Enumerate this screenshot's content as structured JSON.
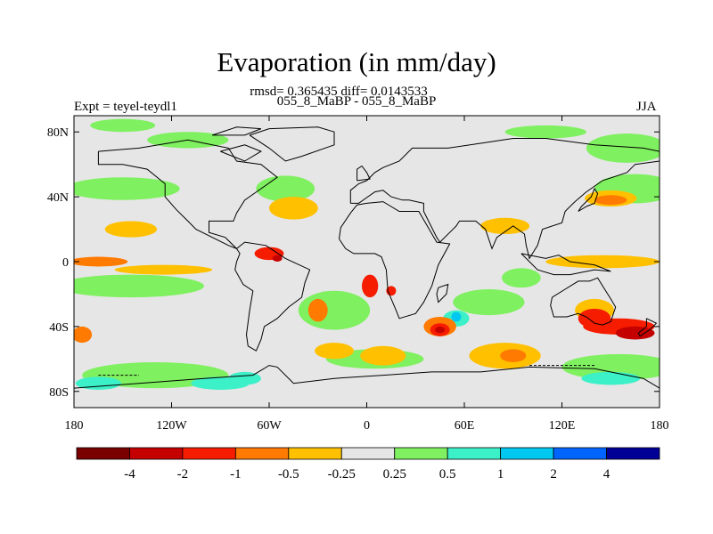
{
  "title": "Evaporation (in mm/day)",
  "stats": "rmsd= 0.365435 diff= 0.0143533",
  "subtitle": "055_8_MaBP - 055_8_MaBP",
  "left_label": "Expt = teyel-teydl1",
  "right_label": "JJA",
  "map": {
    "lon_range": [
      -180,
      180
    ],
    "lat_range": [
      -90,
      90
    ],
    "x_ticks": [
      {
        "lon": -180,
        "label": "180"
      },
      {
        "lon": -120,
        "label": "120W"
      },
      {
        "lon": -60,
        "label": "60W"
      },
      {
        "lon": 0,
        "label": "0"
      },
      {
        "lon": 60,
        "label": "60E"
      },
      {
        "lon": 120,
        "label": "120E"
      },
      {
        "lon": 180,
        "label": "180"
      }
    ],
    "y_ticks": [
      {
        "lat": 80,
        "label": "80N"
      },
      {
        "lat": 40,
        "label": "40N"
      },
      {
        "lat": 0,
        "label": "0"
      },
      {
        "lat": -40,
        "label": "40S"
      },
      {
        "lat": -80,
        "label": "80S"
      }
    ],
    "background_color": "#e6e6e6"
  },
  "colorbar": {
    "colors": [
      "#7a0000",
      "#c40000",
      "#f51c00",
      "#ff7a00",
      "#ffc000",
      "#e6e6e6",
      "#7ff060",
      "#3cf0c8",
      "#00c8f0",
      "#0064ff",
      "#000096"
    ],
    "labels": [
      "-4",
      "-2",
      "-1",
      "-0.5",
      "-0.25",
      "0.25",
      "0.5",
      "1",
      "2",
      "4"
    ]
  },
  "features": [
    {
      "kind": "positive-low",
      "lon": -150,
      "lat": 84,
      "rx": 20,
      "ry": 4,
      "color": "#7ff060"
    },
    {
      "kind": "positive-low",
      "lon": -110,
      "lat": 75,
      "rx": 25,
      "ry": 5,
      "color": "#7ff060"
    },
    {
      "kind": "positive-low",
      "lon": 160,
      "lat": 70,
      "rx": 25,
      "ry": 9,
      "color": "#7ff060"
    },
    {
      "kind": "positive-low",
      "lon": 110,
      "lat": 80,
      "rx": 25,
      "ry": 4,
      "color": "#7ff060"
    },
    {
      "kind": "positive-low",
      "lon": -150,
      "lat": 45,
      "rx": 35,
      "ry": 7,
      "color": "#7ff060"
    },
    {
      "kind": "positive-low",
      "lon": -50,
      "lat": 45,
      "rx": 18,
      "ry": 8,
      "color": "#7ff060"
    },
    {
      "kind": "positive-low",
      "lon": 165,
      "lat": 45,
      "rx": 25,
      "ry": 9,
      "color": "#7ff060"
    },
    {
      "kind": "positive-low",
      "lon": -145,
      "lat": -15,
      "rx": 45,
      "ry": 7,
      "color": "#7ff060"
    },
    {
      "kind": "positive-low",
      "lon": -20,
      "lat": -30,
      "rx": 22,
      "ry": 12,
      "color": "#7ff060"
    },
    {
      "kind": "positive-low",
      "lon": 75,
      "lat": -25,
      "rx": 22,
      "ry": 8,
      "color": "#7ff060"
    },
    {
      "kind": "positive-low",
      "lon": 155,
      "lat": -65,
      "rx": 35,
      "ry": 8,
      "color": "#7ff060"
    },
    {
      "kind": "positive-low",
      "lon": -130,
      "lat": -70,
      "rx": 45,
      "ry": 8,
      "color": "#7ff060"
    },
    {
      "kind": "positive-low",
      "lon": 5,
      "lat": -60,
      "rx": 30,
      "ry": 6,
      "color": "#7ff060"
    },
    {
      "kind": "positive-low",
      "lon": 95,
      "lat": -10,
      "rx": 12,
      "ry": 6,
      "color": "#7ff060"
    },
    {
      "kind": "positive-mid",
      "lon": -165,
      "lat": -75,
      "rx": 14,
      "ry": 4,
      "color": "#3cf0c8"
    },
    {
      "kind": "positive-mid",
      "lon": -90,
      "lat": -75,
      "rx": 18,
      "ry": 4,
      "color": "#3cf0c8"
    },
    {
      "kind": "positive-mid",
      "lon": 150,
      "lat": -72,
      "rx": 18,
      "ry": 4,
      "color": "#3cf0c8"
    },
    {
      "kind": "positive-mid",
      "lon": -75,
      "lat": -72,
      "rx": 10,
      "ry": 4,
      "color": "#3cf0c8"
    },
    {
      "kind": "positive-mid",
      "lon": 55,
      "lat": -35,
      "rx": 8,
      "ry": 5,
      "color": "#3cf0c8"
    },
    {
      "kind": "positive-high",
      "lon": 55,
      "lat": -34,
      "rx": 3,
      "ry": 3,
      "color": "#00c8f0"
    },
    {
      "kind": "negative-low",
      "lon": -145,
      "lat": 20,
      "rx": 16,
      "ry": 5,
      "color": "#ffc000"
    },
    {
      "kind": "negative-low",
      "lon": -45,
      "lat": 33,
      "rx": 15,
      "ry": 7,
      "color": "#ffc000"
    },
    {
      "kind": "negative-low",
      "lon": 85,
      "lat": 22,
      "rx": 15,
      "ry": 5,
      "color": "#ffc000"
    },
    {
      "kind": "negative-low",
      "lon": 150,
      "lat": 39,
      "rx": 16,
      "ry": 5,
      "color": "#ffc000"
    },
    {
      "kind": "negative-low",
      "lon": 145,
      "lat": 0,
      "rx": 35,
      "ry": 4,
      "color": "#ffc000"
    },
    {
      "kind": "negative-low",
      "lon": -125,
      "lat": -5,
      "rx": 30,
      "ry": 3,
      "color": "#ffc000"
    },
    {
      "kind": "negative-low",
      "lon": 85,
      "lat": -58,
      "rx": 22,
      "ry": 8,
      "color": "#ffc000"
    },
    {
      "kind": "negative-low",
      "lon": -20,
      "lat": -55,
      "rx": 12,
      "ry": 5,
      "color": "#ffc000"
    },
    {
      "kind": "negative-low",
      "lon": 10,
      "lat": -58,
      "rx": 14,
      "ry": 6,
      "color": "#ffc000"
    },
    {
      "kind": "negative-low",
      "lon": 140,
      "lat": -30,
      "rx": 12,
      "ry": 7,
      "color": "#ffc000"
    },
    {
      "kind": "negative-mid",
      "lon": -165,
      "lat": 0,
      "rx": 18,
      "ry": 3,
      "color": "#ff7a00"
    },
    {
      "kind": "negative-mid",
      "lon": 150,
      "lat": 38,
      "rx": 10,
      "ry": 3,
      "color": "#ff7a00"
    },
    {
      "kind": "negative-mid",
      "lon": -30,
      "lat": -30,
      "rx": 6,
      "ry": 7,
      "color": "#ff7a00"
    },
    {
      "kind": "negative-mid",
      "lon": 45,
      "lat": -40,
      "rx": 10,
      "ry": 6,
      "color": "#ff7a00"
    },
    {
      "kind": "negative-mid",
      "lon": -175,
      "lat": -45,
      "rx": 6,
      "ry": 5,
      "color": "#ff7a00"
    },
    {
      "kind": "negative-mid",
      "lon": 90,
      "lat": -58,
      "rx": 8,
      "ry": 4,
      "color": "#ff7a00"
    },
    {
      "kind": "negative-high",
      "lon": -60,
      "lat": 5,
      "rx": 9,
      "ry": 4,
      "color": "#f51c00"
    },
    {
      "kind": "negative-high",
      "lon": 2,
      "lat": -15,
      "rx": 5,
      "ry": 7,
      "color": "#f51c00"
    },
    {
      "kind": "negative-high",
      "lon": 45,
      "lat": -42,
      "rx": 6,
      "ry": 4,
      "color": "#f51c00"
    },
    {
      "kind": "negative-high",
      "lon": 155,
      "lat": -40,
      "rx": 22,
      "ry": 5,
      "color": "#f51c00"
    },
    {
      "kind": "negative-high",
      "lon": 140,
      "lat": -35,
      "rx": 10,
      "ry": 6,
      "color": "#f51c00"
    },
    {
      "kind": "negative-high",
      "lon": 15,
      "lat": -18,
      "rx": 3,
      "ry": 3,
      "color": "#f51c00"
    },
    {
      "kind": "negative-max",
      "lon": 165,
      "lat": -44,
      "rx": 12,
      "ry": 4,
      "color": "#c40000"
    },
    {
      "kind": "negative-max",
      "lon": 45,
      "lat": -42,
      "rx": 3,
      "ry": 2,
      "color": "#c40000"
    },
    {
      "kind": "negative-max",
      "lon": -55,
      "lat": 2,
      "rx": 3,
      "ry": 2,
      "color": "#c40000"
    }
  ],
  "land_outlines": [
    {
      "name": "north-america",
      "points": [
        [
          -165,
          68
        ],
        [
          -140,
          70
        ],
        [
          -110,
          75
        ],
        [
          -85,
          70
        ],
        [
          -80,
          62
        ],
        [
          -65,
          60
        ],
        [
          -55,
          52
        ],
        [
          -65,
          45
        ],
        [
          -75,
          38
        ],
        [
          -80,
          30
        ],
        [
          -82,
          25
        ],
        [
          -97,
          25
        ],
        [
          -97,
          18
        ],
        [
          -87,
          15
        ],
        [
          -80,
          8
        ],
        [
          -85,
          10
        ],
        [
          -95,
          15
        ],
        [
          -105,
          20
        ],
        [
          -110,
          25
        ],
        [
          -117,
          32
        ],
        [
          -124,
          40
        ],
        [
          -124,
          48
        ],
        [
          -135,
          57
        ],
        [
          -150,
          60
        ],
        [
          -165,
          60
        ],
        [
          -165,
          68
        ]
      ]
    },
    {
      "name": "south-america",
      "points": [
        [
          -80,
          8
        ],
        [
          -75,
          12
        ],
        [
          -62,
          10
        ],
        [
          -50,
          2
        ],
        [
          -35,
          -5
        ],
        [
          -38,
          -13
        ],
        [
          -40,
          -22
        ],
        [
          -48,
          -28
        ],
        [
          -55,
          -35
        ],
        [
          -63,
          -40
        ],
        [
          -65,
          -48
        ],
        [
          -68,
          -55
        ],
        [
          -73,
          -52
        ],
        [
          -74,
          -45
        ],
        [
          -72,
          -30
        ],
        [
          -70,
          -18
        ],
        [
          -76,
          -14
        ],
        [
          -81,
          -5
        ],
        [
          -80,
          0
        ],
        [
          -78,
          5
        ],
        [
          -80,
          8
        ]
      ]
    },
    {
      "name": "europe-asia",
      "points": [
        [
          -10,
          36
        ],
        [
          -10,
          44
        ],
        [
          -5,
          48
        ],
        [
          0,
          50
        ],
        [
          5,
          55
        ],
        [
          10,
          58
        ],
        [
          20,
          62
        ],
        [
          28,
          70
        ],
        [
          50,
          70
        ],
        [
          70,
          73
        ],
        [
          90,
          76
        ],
        [
          110,
          76
        ],
        [
          140,
          72
        ],
        [
          170,
          70
        ],
        [
          180,
          68
        ],
        [
          180,
          62
        ],
        [
          165,
          60
        ],
        [
          160,
          55
        ],
        [
          145,
          50
        ],
        [
          135,
          43
        ],
        [
          128,
          37
        ],
        [
          122,
          31
        ],
        [
          120,
          24
        ],
        [
          108,
          20
        ],
        [
          105,
          10
        ],
        [
          100,
          2
        ],
        [
          98,
          10
        ],
        [
          97,
          17
        ],
        [
          90,
          22
        ],
        [
          80,
          15
        ],
        [
          77,
          8
        ],
        [
          73,
          20
        ],
        [
          67,
          25
        ],
        [
          57,
          25
        ],
        [
          55,
          22
        ],
        [
          45,
          12
        ],
        [
          43,
          15
        ],
        [
          38,
          25
        ],
        [
          35,
          31
        ],
        [
          35,
          36
        ],
        [
          26,
          38
        ],
        [
          22,
          38
        ],
        [
          15,
          40
        ],
        [
          10,
          44
        ],
        [
          5,
          43
        ],
        [
          -5,
          36
        ],
        [
          -10,
          36
        ]
      ]
    },
    {
      "name": "africa",
      "points": [
        [
          -17,
          14
        ],
        [
          -16,
          21
        ],
        [
          -10,
          30
        ],
        [
          -6,
          35
        ],
        [
          0,
          36
        ],
        [
          10,
          37
        ],
        [
          20,
          31
        ],
        [
          32,
          31
        ],
        [
          43,
          12
        ],
        [
          51,
          11
        ],
        [
          44,
          -2
        ],
        [
          40,
          -15
        ],
        [
          35,
          -25
        ],
        [
          30,
          -32
        ],
        [
          20,
          -35
        ],
        [
          18,
          -30
        ],
        [
          13,
          -18
        ],
        [
          12,
          -5
        ],
        [
          9,
          3
        ],
        [
          5,
          5
        ],
        [
          -8,
          5
        ],
        [
          -13,
          8
        ],
        [
          -17,
          14
        ]
      ]
    },
    {
      "name": "madagascar",
      "points": [
        [
          44,
          -16
        ],
        [
          50,
          -14
        ],
        [
          49,
          -20
        ],
        [
          44,
          -25
        ],
        [
          43,
          -20
        ],
        [
          44,
          -16
        ]
      ]
    },
    {
      "name": "australia",
      "points": [
        [
          114,
          -22
        ],
        [
          122,
          -17
        ],
        [
          130,
          -12
        ],
        [
          137,
          -12
        ],
        [
          142,
          -10
        ],
        [
          145,
          -15
        ],
        [
          150,
          -23
        ],
        [
          153,
          -28
        ],
        [
          150,
          -37
        ],
        [
          145,
          -39
        ],
        [
          140,
          -38
        ],
        [
          135,
          -34
        ],
        [
          130,
          -32
        ],
        [
          123,
          -34
        ],
        [
          115,
          -34
        ],
        [
          113,
          -27
        ],
        [
          114,
          -22
        ]
      ]
    },
    {
      "name": "greenland",
      "points": [
        [
          -72,
          78
        ],
        [
          -60,
          82
        ],
        [
          -30,
          83
        ],
        [
          -20,
          80
        ],
        [
          -20,
          72
        ],
        [
          -40,
          65
        ],
        [
          -50,
          62
        ],
        [
          -60,
          70
        ],
        [
          -72,
          78
        ]
      ]
    },
    {
      "name": "antarctica",
      "points": [
        [
          -180,
          -78
        ],
        [
          -140,
          -75
        ],
        [
          -100,
          -72
        ],
        [
          -70,
          -70
        ],
        [
          -60,
          -64
        ],
        [
          -55,
          -65
        ],
        [
          -45,
          -75
        ],
        [
          -20,
          -72
        ],
        [
          10,
          -70
        ],
        [
          40,
          -68
        ],
        [
          70,
          -68
        ],
        [
          100,
          -65
        ],
        [
          140,
          -66
        ],
        [
          160,
          -70
        ],
        [
          170,
          -72
        ],
        [
          180,
          -78
        ]
      ]
    },
    {
      "name": "new-zealand",
      "points": [
        [
          172,
          -35
        ],
        [
          178,
          -38
        ],
        [
          174,
          -42
        ],
        [
          168,
          -46
        ],
        [
          167,
          -44
        ],
        [
          172,
          -40
        ],
        [
          172,
          -35
        ]
      ]
    },
    {
      "name": "japan",
      "points": [
        [
          130,
          31
        ],
        [
          135,
          34
        ],
        [
          140,
          36
        ],
        [
          142,
          42
        ],
        [
          140,
          45
        ],
        [
          138,
          40
        ],
        [
          132,
          34
        ],
        [
          130,
          31
        ]
      ]
    },
    {
      "name": "indonesia",
      "points": [
        [
          95,
          5
        ],
        [
          105,
          -5
        ],
        [
          115,
          -8
        ],
        [
          125,
          -8
        ],
        [
          140,
          -5
        ],
        [
          150,
          -6
        ],
        [
          140,
          -2
        ],
        [
          125,
          0
        ],
        [
          118,
          4
        ],
        [
          110,
          2
        ],
        [
          100,
          4
        ],
        [
          95,
          5
        ]
      ]
    },
    {
      "name": "uk",
      "points": [
        [
          -6,
          50
        ],
        [
          2,
          51
        ],
        [
          0,
          55
        ],
        [
          -3,
          59
        ],
        [
          -6,
          57
        ],
        [
          -6,
          50
        ]
      ]
    },
    {
      "name": "baffin",
      "points": [
        [
          -90,
          68
        ],
        [
          -75,
          72
        ],
        [
          -65,
          68
        ],
        [
          -75,
          62
        ],
        [
          -90,
          68
        ]
      ]
    },
    {
      "name": "ellesmere",
      "points": [
        [
          -95,
          78
        ],
        [
          -80,
          83
        ],
        [
          -65,
          82
        ],
        [
          -75,
          78
        ],
        [
          -95,
          78
        ]
      ]
    }
  ],
  "dashed_lines": [
    {
      "name": "antarctic-shelf-west",
      "points": [
        [
          -165,
          -70
        ],
        [
          -140,
          -70
        ]
      ]
    },
    {
      "name": "antarctic-shelf-indian",
      "points": [
        [
          100,
          -64
        ],
        [
          140,
          -64
        ]
      ]
    }
  ]
}
